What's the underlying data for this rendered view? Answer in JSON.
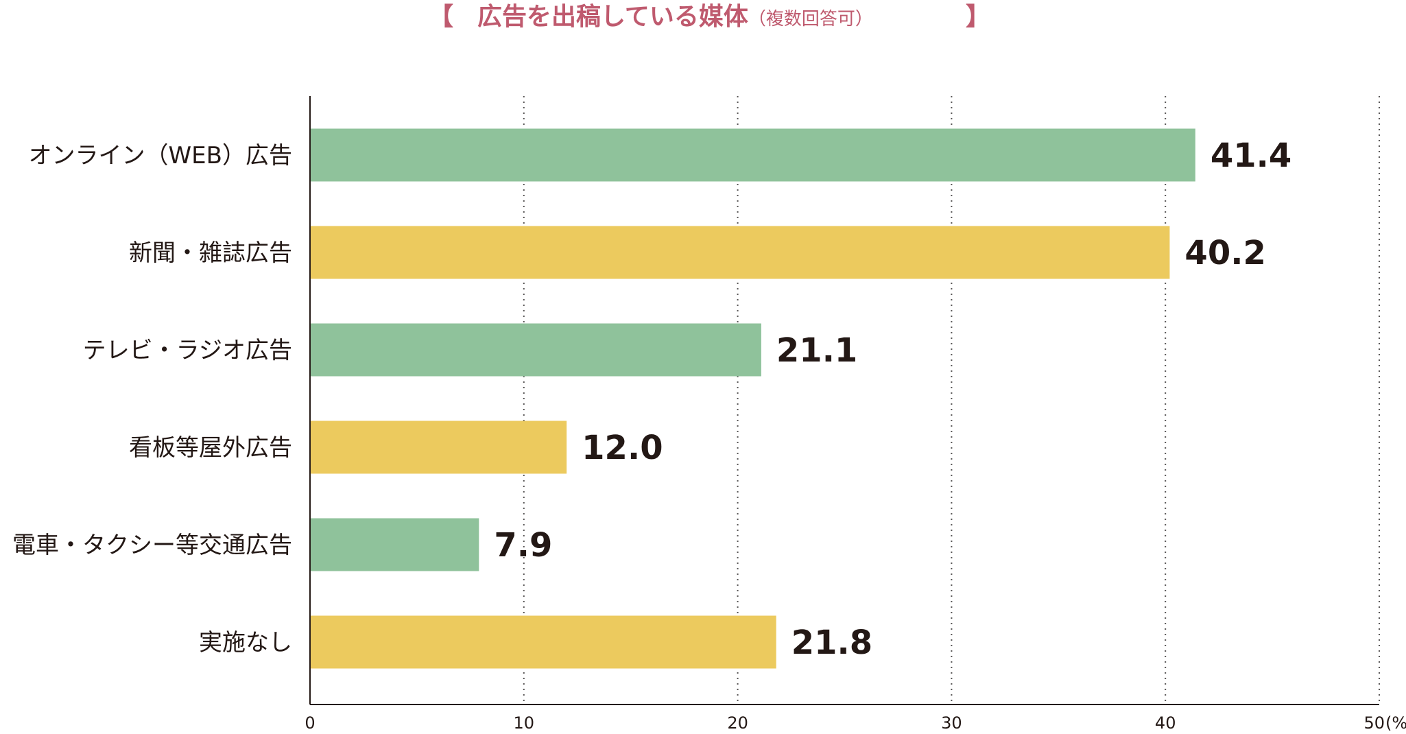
{
  "chart_data": {
    "type": "bar",
    "orientation": "horizontal",
    "title": "広告を出稿している媒体",
    "title_note": "（複数回答可）",
    "title_bracket_left": "【",
    "title_bracket_right": "】",
    "categories": [
      "オンライン（WEB）広告",
      "新聞・雑誌広告",
      "テレビ・ラジオ広告",
      "看板等屋外広告",
      "電車・タクシー等交通広告",
      "実施なし"
    ],
    "values": [
      41.4,
      40.2,
      21.1,
      12.0,
      7.9,
      21.8
    ],
    "value_labels": [
      "41.4",
      "40.2",
      "21.1",
      "12.0",
      "7.9",
      "21.8"
    ],
    "bar_colors": [
      "#8fc29b",
      "#ecca5e",
      "#8fc29b",
      "#ecca5e",
      "#8fc29b",
      "#ecca5e"
    ],
    "xlim": [
      0,
      50
    ],
    "xticks": [
      0,
      10,
      20,
      30,
      40,
      50
    ],
    "xtick_labels": [
      "0",
      "10",
      "20",
      "30",
      "40",
      "50"
    ],
    "x_unit": "(%)",
    "grid": "vertical dotted",
    "colors": {
      "title": "#bf5a6e",
      "text": "#231815",
      "axis": "#231815",
      "grid": "#595757"
    }
  }
}
